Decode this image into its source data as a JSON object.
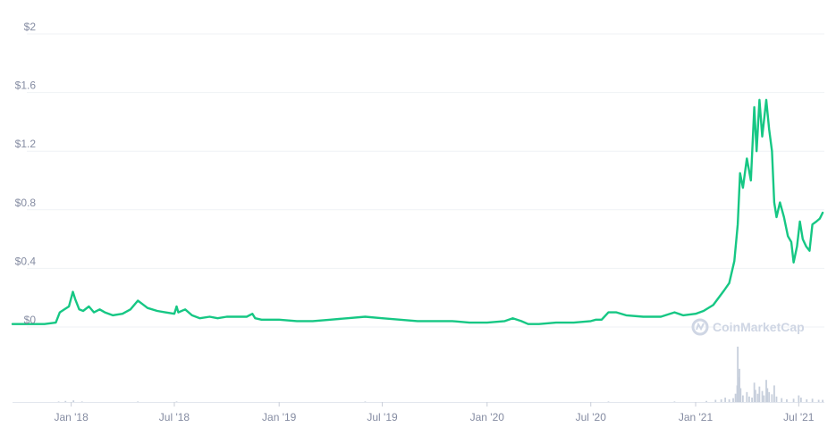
{
  "colors": {
    "price_line": "#16c784",
    "grid": "#eff2f5",
    "axis_label": "#858ca2",
    "volume_bar": "#c7cfdc",
    "watermark": "#cfd6e4"
  },
  "watermark": {
    "text": "CoinMarketCap",
    "icon": "coinmarketcap-logo-icon"
  },
  "chart_data": {
    "type": "line",
    "title": "",
    "xlabel": "",
    "ylabel": "",
    "grid": true,
    "legend": "none",
    "ylim": [
      0,
      2
    ],
    "xlim": [
      "2017-09-20",
      "2021-08-15"
    ],
    "y_ticks": [
      {
        "value": 2,
        "label": "$2"
      },
      {
        "value": 1.6,
        "label": "$1.6"
      },
      {
        "value": 1.2,
        "label": "$1.2"
      },
      {
        "value": 0.8,
        "label": "$0.8"
      },
      {
        "value": 0.4,
        "label": "$0.4"
      },
      {
        "value": 0,
        "label": "$0"
      }
    ],
    "x_ticks": [
      {
        "date": "2018-01-01",
        "label": "Jan '18"
      },
      {
        "date": "2018-07-01",
        "label": "Jul '18"
      },
      {
        "date": "2019-01-01",
        "label": "Jan '19"
      },
      {
        "date": "2019-07-01",
        "label": "Jul '19"
      },
      {
        "date": "2020-01-01",
        "label": "Jan '20"
      },
      {
        "date": "2020-07-01",
        "label": "Jul '20"
      },
      {
        "date": "2021-01-01",
        "label": "Jan '21"
      },
      {
        "date": "2021-07-01",
        "label": "Jul '21"
      }
    ],
    "series": [
      {
        "values": [
          [
            "2017-09-20",
            0.02
          ],
          [
            "2017-10-15",
            0.02
          ],
          [
            "2017-11-15",
            0.02
          ],
          [
            "2017-12-05",
            0.03
          ],
          [
            "2017-12-12",
            0.1
          ],
          [
            "2017-12-20",
            0.12
          ],
          [
            "2017-12-28",
            0.14
          ],
          [
            "2018-01-04",
            0.24
          ],
          [
            "2018-01-08",
            0.19
          ],
          [
            "2018-01-15",
            0.12
          ],
          [
            "2018-01-22",
            0.11
          ],
          [
            "2018-02-01",
            0.14
          ],
          [
            "2018-02-10",
            0.1
          ],
          [
            "2018-02-20",
            0.12
          ],
          [
            "2018-03-01",
            0.1
          ],
          [
            "2018-03-15",
            0.08
          ],
          [
            "2018-04-01",
            0.09
          ],
          [
            "2018-04-15",
            0.12
          ],
          [
            "2018-04-28",
            0.18
          ],
          [
            "2018-05-05",
            0.16
          ],
          [
            "2018-05-15",
            0.13
          ],
          [
            "2018-06-01",
            0.11
          ],
          [
            "2018-06-15",
            0.1
          ],
          [
            "2018-07-01",
            0.09
          ],
          [
            "2018-07-05",
            0.14
          ],
          [
            "2018-07-08",
            0.1
          ],
          [
            "2018-07-20",
            0.12
          ],
          [
            "2018-08-01",
            0.08
          ],
          [
            "2018-08-15",
            0.06
          ],
          [
            "2018-09-01",
            0.07
          ],
          [
            "2018-09-15",
            0.06
          ],
          [
            "2018-10-01",
            0.07
          ],
          [
            "2018-10-20",
            0.07
          ],
          [
            "2018-11-05",
            0.07
          ],
          [
            "2018-11-15",
            0.09
          ],
          [
            "2018-11-20",
            0.06
          ],
          [
            "2018-12-01",
            0.05
          ],
          [
            "2018-12-15",
            0.05
          ],
          [
            "2019-01-01",
            0.05
          ],
          [
            "2019-02-01",
            0.04
          ],
          [
            "2019-03-01",
            0.04
          ],
          [
            "2019-04-01",
            0.05
          ],
          [
            "2019-05-01",
            0.06
          ],
          [
            "2019-06-01",
            0.07
          ],
          [
            "2019-07-01",
            0.06
          ],
          [
            "2019-08-01",
            0.05
          ],
          [
            "2019-09-01",
            0.04
          ],
          [
            "2019-10-01",
            0.04
          ],
          [
            "2019-11-01",
            0.04
          ],
          [
            "2019-12-01",
            0.03
          ],
          [
            "2020-01-01",
            0.03
          ],
          [
            "2020-02-01",
            0.04
          ],
          [
            "2020-02-15",
            0.06
          ],
          [
            "2020-03-01",
            0.04
          ],
          [
            "2020-03-13",
            0.02
          ],
          [
            "2020-04-01",
            0.02
          ],
          [
            "2020-05-01",
            0.03
          ],
          [
            "2020-06-01",
            0.03
          ],
          [
            "2020-07-01",
            0.04
          ],
          [
            "2020-07-10",
            0.05
          ],
          [
            "2020-07-20",
            0.05
          ],
          [
            "2020-08-01",
            0.1
          ],
          [
            "2020-08-15",
            0.1
          ],
          [
            "2020-09-01",
            0.08
          ],
          [
            "2020-10-01",
            0.07
          ],
          [
            "2020-11-01",
            0.07
          ],
          [
            "2020-11-25",
            0.1
          ],
          [
            "2020-12-10",
            0.08
          ],
          [
            "2021-01-01",
            0.09
          ],
          [
            "2021-01-15",
            0.11
          ],
          [
            "2021-02-01",
            0.15
          ],
          [
            "2021-02-20",
            0.25
          ],
          [
            "2021-03-01",
            0.3
          ],
          [
            "2021-03-10",
            0.45
          ],
          [
            "2021-03-16",
            0.7
          ],
          [
            "2021-03-20",
            1.05
          ],
          [
            "2021-03-25",
            0.95
          ],
          [
            "2021-04-01",
            1.15
          ],
          [
            "2021-04-08",
            1.0
          ],
          [
            "2021-04-14",
            1.5
          ],
          [
            "2021-04-18",
            1.2
          ],
          [
            "2021-04-23",
            1.55
          ],
          [
            "2021-04-28",
            1.3
          ],
          [
            "2021-05-05",
            1.55
          ],
          [
            "2021-05-10",
            1.35
          ],
          [
            "2021-05-15",
            1.2
          ],
          [
            "2021-05-19",
            0.85
          ],
          [
            "2021-05-23",
            0.75
          ],
          [
            "2021-05-29",
            0.85
          ],
          [
            "2021-06-05",
            0.75
          ],
          [
            "2021-06-12",
            0.62
          ],
          [
            "2021-06-18",
            0.58
          ],
          [
            "2021-06-22",
            0.44
          ],
          [
            "2021-06-28",
            0.55
          ],
          [
            "2021-07-03",
            0.72
          ],
          [
            "2021-07-08",
            0.6
          ],
          [
            "2021-07-14",
            0.55
          ],
          [
            "2021-07-20",
            0.52
          ],
          [
            "2021-07-25",
            0.7
          ],
          [
            "2021-08-01",
            0.72
          ],
          [
            "2021-08-07",
            0.74
          ],
          [
            "2021-08-12",
            0.78
          ]
        ]
      }
    ],
    "volume": [
      [
        "2017-12-10",
        0.01
      ],
      [
        "2017-12-22",
        0.02
      ],
      [
        "2018-01-05",
        0.03
      ],
      [
        "2018-01-20",
        0.01
      ],
      [
        "2018-04-28",
        0.01
      ],
      [
        "2018-07-05",
        0.01
      ],
      [
        "2019-06-01",
        0.01
      ],
      [
        "2020-08-01",
        0.01
      ],
      [
        "2020-11-25",
        0.01
      ],
      [
        "2021-01-20",
        0.02
      ],
      [
        "2021-02-05",
        0.04
      ],
      [
        "2021-02-15",
        0.05
      ],
      [
        "2021-02-22",
        0.08
      ],
      [
        "2021-03-01",
        0.05
      ],
      [
        "2021-03-08",
        0.07
      ],
      [
        "2021-03-12",
        0.15
      ],
      [
        "2021-03-15",
        0.3
      ],
      [
        "2021-03-16",
        1.0
      ],
      [
        "2021-03-17",
        0.45
      ],
      [
        "2021-03-19",
        0.6
      ],
      [
        "2021-03-21",
        0.25
      ],
      [
        "2021-03-25",
        0.12
      ],
      [
        "2021-04-01",
        0.18
      ],
      [
        "2021-04-05",
        0.1
      ],
      [
        "2021-04-10",
        0.08
      ],
      [
        "2021-04-14",
        0.35
      ],
      [
        "2021-04-16",
        0.22
      ],
      [
        "2021-04-20",
        0.15
      ],
      [
        "2021-04-23",
        0.28
      ],
      [
        "2021-04-28",
        0.2
      ],
      [
        "2021-05-01",
        0.12
      ],
      [
        "2021-05-05",
        0.4
      ],
      [
        "2021-05-07",
        0.25
      ],
      [
        "2021-05-10",
        0.18
      ],
      [
        "2021-05-15",
        0.14
      ],
      [
        "2021-05-19",
        0.3
      ],
      [
        "2021-05-23",
        0.1
      ],
      [
        "2021-06-01",
        0.07
      ],
      [
        "2021-06-10",
        0.05
      ],
      [
        "2021-06-22",
        0.06
      ],
      [
        "2021-07-01",
        0.12
      ],
      [
        "2021-07-05",
        0.08
      ],
      [
        "2021-07-15",
        0.05
      ],
      [
        "2021-07-25",
        0.06
      ],
      [
        "2021-08-05",
        0.04
      ],
      [
        "2021-08-12",
        0.04
      ]
    ]
  }
}
